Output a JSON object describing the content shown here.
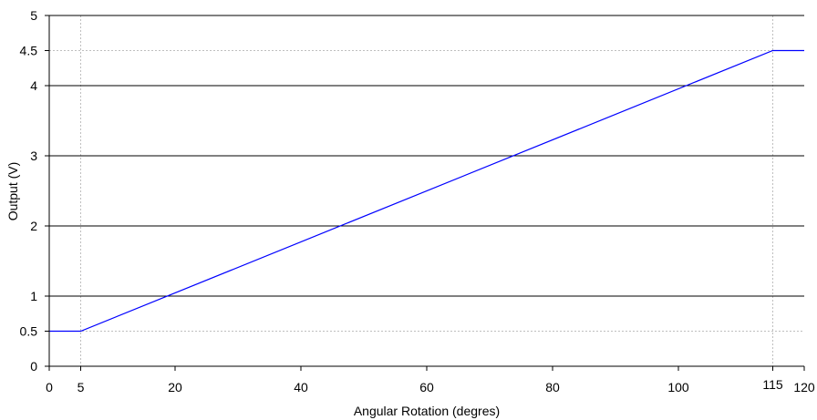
{
  "chart_data": {
    "type": "line",
    "title": "",
    "xlabel": "Angular Rotation (degres)",
    "ylabel": "Output (V)",
    "xlim": [
      0,
      120
    ],
    "ylim": [
      0,
      5
    ],
    "x_ticks": [
      0,
      5,
      20,
      40,
      60,
      80,
      100,
      115,
      120
    ],
    "y_ticks": [
      0,
      0.5,
      1,
      2,
      3,
      4,
      4.5,
      5
    ],
    "x_tick_labels": [
      "0",
      "5",
      "20",
      "40",
      "60",
      "80",
      "100",
      "115",
      "120"
    ],
    "y_tick_labels": [
      "0",
      "0.5",
      "1",
      "2",
      "3",
      "4",
      "4.5",
      "5"
    ],
    "grid": {
      "horizontal_solid": [
        1,
        2,
        3,
        4
      ],
      "horizontal_dotted": [
        0.5,
        4.5
      ],
      "vertical_dotted": [
        5,
        115
      ]
    },
    "legend": "none",
    "series": [
      {
        "color": "#0000ff",
        "points": [
          {
            "x": 0,
            "y": 0.5
          },
          {
            "x": 5,
            "y": 0.5
          },
          {
            "x": 115,
            "y": 4.5
          },
          {
            "x": 120,
            "y": 4.5
          }
        ]
      }
    ]
  },
  "colors": {
    "series": "#0000ff",
    "grid": "#000000",
    "dotted_grid": "#bfbfbf",
    "axis": "#000000"
  }
}
